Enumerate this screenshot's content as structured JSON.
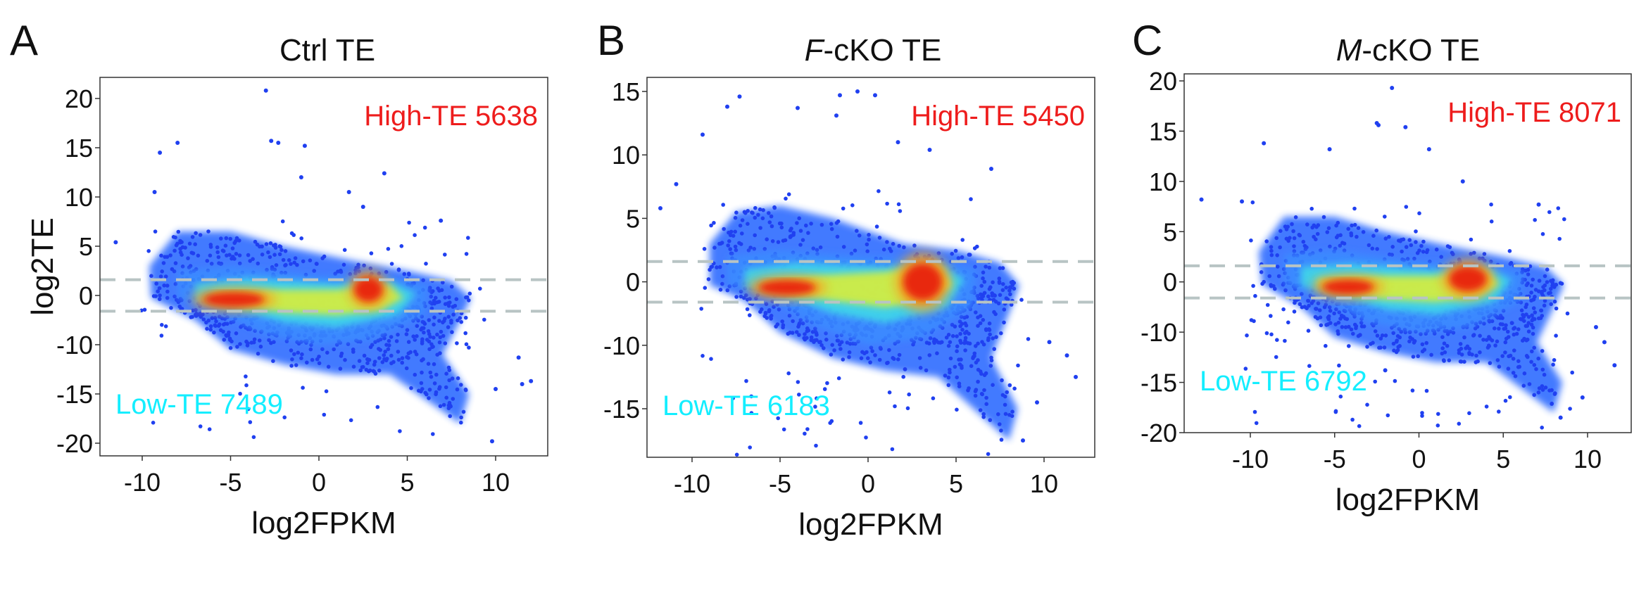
{
  "colors": {
    "point": "#2040f0",
    "density_low": "#2f6cff",
    "density_mid": "#3fd8e8",
    "density_high": "#d8ee3a",
    "density_peak": "#e8200c",
    "high_te": "#ee1c1c",
    "low_te": "#14eeff",
    "threshold": "#b8c4c4"
  },
  "chart_data": [
    {
      "type": "scatter",
      "panel_letter": "A",
      "title_italic": "",
      "title_rest": "Ctrl TE",
      "xlabel": "log2FPKM",
      "ylabel": "log2TE",
      "xlim": [
        -12.4,
        12.9
      ],
      "x_ticks": [
        -10,
        -5,
        0,
        5,
        10
      ],
      "y_tick_labels": [
        20,
        15,
        10,
        5,
        0,
        -10,
        -15,
        -20
      ],
      "threshold_lines": [
        1.6,
        -3.2
      ],
      "annotations": {
        "high": "High-TE 5638",
        "low": "Low-TE 7489"
      },
      "density_regions": {
        "outer": [
          [
            -9.6,
            3
          ],
          [
            -8,
            6.5
          ],
          [
            -5,
            6.5
          ],
          [
            -2,
            5
          ],
          [
            2,
            3.5
          ],
          [
            5,
            2.5
          ],
          [
            7.5,
            1.5
          ],
          [
            8.6,
            -0.5
          ],
          [
            8,
            -5
          ],
          [
            7,
            -11
          ],
          [
            8.5,
            -15
          ],
          [
            8,
            -18
          ],
          [
            6,
            -15.5
          ],
          [
            4,
            -13
          ],
          [
            1,
            -13
          ],
          [
            -2,
            -12
          ],
          [
            -5,
            -10.5
          ],
          [
            -7,
            -5
          ],
          [
            -9.5,
            -0.5
          ]
        ],
        "mid": [
          [
            -8,
            2.5
          ],
          [
            -5,
            3
          ],
          [
            0,
            2
          ],
          [
            4,
            1.8
          ],
          [
            6.2,
            1
          ],
          [
            6,
            -4
          ],
          [
            3,
            -9
          ],
          [
            0,
            -10
          ],
          [
            -3,
            -8
          ],
          [
            -6,
            -3
          ],
          [
            -8,
            -0.5
          ]
        ],
        "cyan": [
          [
            -7,
            1.2
          ],
          [
            -4,
            1.8
          ],
          [
            1,
            1.2
          ],
          [
            4,
            1.5
          ],
          [
            5.5,
            0.2
          ],
          [
            4.5,
            -4
          ],
          [
            1,
            -6.5
          ],
          [
            -2,
            -5.5
          ],
          [
            -5,
            -2.5
          ],
          [
            -7,
            -0.8
          ]
        ],
        "yellow": [
          [
            -6,
            0.3
          ],
          [
            -3,
            0.6
          ],
          [
            1,
            0.6
          ],
          [
            4,
            1
          ],
          [
            4.8,
            -0.5
          ],
          [
            3.5,
            -3
          ],
          [
            1,
            -4
          ],
          [
            -2,
            -3.5
          ],
          [
            -5,
            -1.5
          ],
          [
            -6,
            -0.8
          ]
        ],
        "peaks": [
          {
            "x": -4.8,
            "y": -0.8,
            "sx": 1.7,
            "sy": 0.6
          },
          {
            "x": 2.8,
            "y": 0.6,
            "sx": 0.8,
            "sy": 0.8
          }
        ]
      },
      "outliers": [
        [
          -11.5,
          5.4
        ],
        [
          -3,
          20.8
        ],
        [
          -8,
          15.5
        ],
        [
          -9,
          14.5
        ],
        [
          -2.7,
          15.7
        ],
        [
          -2.3,
          15.5
        ],
        [
          -0.8,
          15.2
        ],
        [
          3.7,
          12.4
        ],
        [
          6.9,
          7.6
        ],
        [
          9.8,
          -19.8
        ],
        [
          11.3,
          -11.3
        ],
        [
          12,
          -13.7
        ],
        [
          11.5,
          -14
        ],
        [
          10,
          -14.5
        ],
        [
          -9.3,
          10.5
        ],
        [
          -1,
          12
        ],
        [
          1.7,
          10.5
        ],
        [
          2.5,
          9
        ]
      ]
    },
    {
      "type": "scatter",
      "panel_letter": "B",
      "title_italic": "F",
      "title_rest": "-cKO TE",
      "xlabel": "log2FPKM",
      "ylabel": "",
      "xlim": [
        -12.7,
        12.7
      ],
      "x_ticks": [
        -10,
        -5,
        0,
        5,
        10
      ],
      "y_tick_labels": [
        15,
        10,
        5,
        0,
        -10,
        -15
      ],
      "threshold_lines": [
        1.6,
        -3.2
      ],
      "annotations": {
        "high": "High-TE 5450",
        "low": "Low-TE 6183"
      },
      "density_regions": {
        "outer": [
          [
            -9,
            3
          ],
          [
            -7.5,
            5.5
          ],
          [
            -5,
            6
          ],
          [
            -2,
            5
          ],
          [
            2,
            3
          ],
          [
            5,
            2.5
          ],
          [
            7.5,
            1.5
          ],
          [
            8.6,
            -0.5
          ],
          [
            8,
            -5
          ],
          [
            7,
            -11
          ],
          [
            8.5,
            -15
          ],
          [
            8,
            -17.5
          ],
          [
            6,
            -15
          ],
          [
            4,
            -12.5
          ],
          [
            1,
            -12
          ],
          [
            -2,
            -11
          ],
          [
            -5,
            -8
          ],
          [
            -7,
            -3
          ],
          [
            -9,
            -0.5
          ]
        ],
        "mid": [
          [
            -8,
            2
          ],
          [
            -5,
            2.5
          ],
          [
            0,
            2
          ],
          [
            4,
            1.8
          ],
          [
            6.2,
            1
          ],
          [
            6,
            -4
          ],
          [
            3,
            -9
          ],
          [
            0,
            -10
          ],
          [
            -3,
            -7
          ],
          [
            -6,
            -2
          ],
          [
            -8,
            -0.5
          ]
        ],
        "cyan": [
          [
            -7,
            1
          ],
          [
            -4,
            1.5
          ],
          [
            1,
            1.2
          ],
          [
            4,
            1.5
          ],
          [
            5.5,
            0.2
          ],
          [
            4.5,
            -4
          ],
          [
            1,
            -6.5
          ],
          [
            -2,
            -5
          ],
          [
            -5,
            -2
          ],
          [
            -7,
            -0.8
          ]
        ],
        "yellow": [
          [
            -6,
            0
          ],
          [
            -3,
            0.5
          ],
          [
            1,
            0.8
          ],
          [
            4,
            1.3
          ],
          [
            4.8,
            -0.5
          ],
          [
            3.5,
            -3
          ],
          [
            1,
            -4
          ],
          [
            -2,
            -3
          ],
          [
            -5,
            -1.5
          ],
          [
            -6,
            -0.8
          ]
        ],
        "peaks": [
          {
            "x": -4.6,
            "y": -0.9,
            "sx": 1.6,
            "sy": 0.5
          },
          {
            "x": 3.1,
            "y": 0,
            "sx": 1.1,
            "sy": 1.1
          }
        ]
      },
      "outliers": [
        [
          -11.8,
          5.8
        ],
        [
          -10.9,
          7.7
        ],
        [
          -9.4,
          11.6
        ],
        [
          -7.3,
          14.6
        ],
        [
          -8,
          13.8
        ],
        [
          -0.6,
          15
        ],
        [
          0.4,
          14.7
        ],
        [
          -1.6,
          14.7
        ],
        [
          7,
          8.9
        ],
        [
          11.8,
          -12.5
        ],
        [
          11.3,
          -10.8
        ],
        [
          8.8,
          -17.5
        ],
        [
          9.6,
          -14.5
        ],
        [
          10.3,
          -9.5
        ],
        [
          -4,
          13.7
        ],
        [
          -1.8,
          13.1
        ],
        [
          1.7,
          11
        ],
        [
          3.5,
          10.4
        ]
      ]
    },
    {
      "type": "scatter",
      "panel_letter": "C",
      "title_italic": "M",
      "title_rest": "-cKO TE",
      "xlabel": "log2FPKM",
      "ylabel": "",
      "xlim": [
        -13.9,
        12.6
      ],
      "x_ticks": [
        -10,
        -5,
        0,
        5,
        10
      ],
      "y_tick_labels": [
        20,
        15,
        10,
        5,
        0,
        -10,
        -15,
        -20
      ],
      "threshold_lines": [
        1.6,
        -3.2
      ],
      "annotations": {
        "high": "High-TE 8071",
        "low": "Low-TE 6792"
      },
      "density_regions": {
        "outer": [
          [
            -9.5,
            3
          ],
          [
            -8,
            6.5
          ],
          [
            -5,
            6.5
          ],
          [
            -2,
            5
          ],
          [
            2,
            3.5
          ],
          [
            5,
            2.5
          ],
          [
            7.5,
            1.5
          ],
          [
            8.6,
            -0.5
          ],
          [
            8,
            -5
          ],
          [
            7,
            -11
          ],
          [
            8.5,
            -15
          ],
          [
            8,
            -18
          ],
          [
            6,
            -15.5
          ],
          [
            4,
            -13
          ],
          [
            1,
            -13
          ],
          [
            -2,
            -12
          ],
          [
            -5,
            -10.5
          ],
          [
            -7,
            -5
          ],
          [
            -9.3,
            -0.5
          ]
        ],
        "mid": [
          [
            -8,
            2.8
          ],
          [
            -5,
            3.2
          ],
          [
            0,
            2
          ],
          [
            4,
            1.8
          ],
          [
            6.2,
            1
          ],
          [
            6,
            -4
          ],
          [
            3,
            -9
          ],
          [
            0,
            -10
          ],
          [
            -3,
            -8
          ],
          [
            -6,
            -3
          ],
          [
            -8,
            -0.5
          ]
        ],
        "cyan": [
          [
            -7,
            1.5
          ],
          [
            -4,
            1.8
          ],
          [
            1,
            1.2
          ],
          [
            4,
            1.5
          ],
          [
            5.5,
            0.2
          ],
          [
            4.5,
            -4
          ],
          [
            1,
            -6.5
          ],
          [
            -2,
            -5.5
          ],
          [
            -5,
            -2.5
          ],
          [
            -7,
            -0.8
          ]
        ],
        "yellow": [
          [
            -6,
            0.3
          ],
          [
            -3,
            0.6
          ],
          [
            1,
            0.6
          ],
          [
            4,
            1
          ],
          [
            4.8,
            -0.5
          ],
          [
            3.5,
            -3
          ],
          [
            1,
            -4
          ],
          [
            -2,
            -3.5
          ],
          [
            -5,
            -1.5
          ],
          [
            -6,
            -0.8
          ]
        ],
        "peaks": [
          {
            "x": -4.2,
            "y": -1,
            "sx": 1.5,
            "sy": 0.6
          },
          {
            "x": 2.9,
            "y": 0.3,
            "sx": 1.1,
            "sy": 0.8
          }
        ]
      },
      "outliers": [
        [
          -12.9,
          8.2
        ],
        [
          -10.5,
          8
        ],
        [
          -1.6,
          19.3
        ],
        [
          -2.5,
          15.8
        ],
        [
          -2.4,
          15.6
        ],
        [
          -0.8,
          15.4
        ],
        [
          7.1,
          7.7
        ],
        [
          11.6,
          -13.3
        ],
        [
          11,
          -11
        ],
        [
          8.4,
          -18.5
        ],
        [
          9.7,
          -16.5
        ],
        [
          10.5,
          -9
        ],
        [
          -2,
          -13.8
        ],
        [
          -9.2,
          13.8
        ],
        [
          -5.3,
          13.2
        ],
        [
          0.6,
          13.2
        ],
        [
          2.6,
          10
        ]
      ]
    }
  ]
}
